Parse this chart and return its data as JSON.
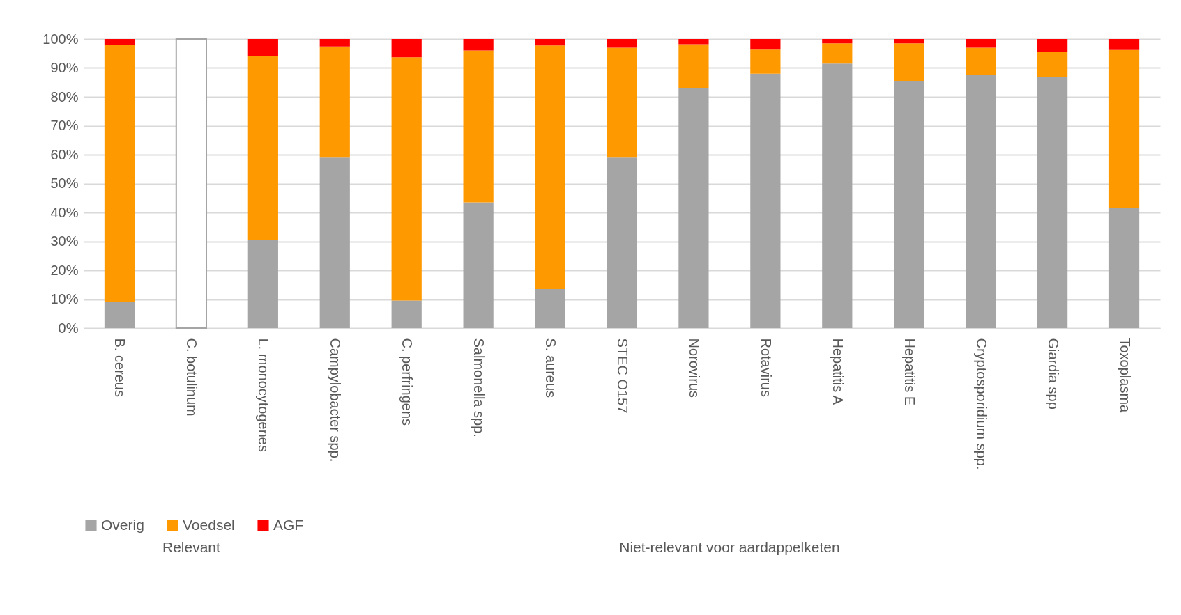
{
  "chart_data": {
    "type": "bar",
    "stacked": true,
    "categories": [
      "B. cereus",
      "C. botulinum",
      "L. monocytogenes",
      "Campylobacter spp.",
      "C. perfringens",
      "Salmonella spp.",
      "S. aureus",
      "STEC O157",
      "Norovirus",
      "Rotavirus",
      "Hepatitis A",
      "Hepatitis E",
      "Cryptosporidium spp.",
      "Giardia spp",
      "Toxoplasma"
    ],
    "series": [
      {
        "name": "Overig",
        "color": "#a5a5a5",
        "values": [
          9,
          null,
          30.5,
          59,
          9.5,
          43.5,
          13.5,
          59,
          83,
          88,
          91.5,
          85.5,
          87.7,
          87,
          41.5
        ]
      },
      {
        "name": "Voedsel",
        "color": "#ff9900",
        "values": [
          89,
          null,
          63.7,
          38.4,
          84.2,
          52.5,
          84.3,
          38,
          15.2,
          8.3,
          7,
          13,
          9.3,
          8.5,
          54.7
        ]
      },
      {
        "name": "AGF",
        "color": "#ff0000",
        "values": [
          2,
          null,
          5.8,
          2.6,
          6.3,
          4,
          2.2,
          3,
          1.8,
          3.7,
          1.5,
          1.5,
          3,
          4.5,
          3.8
        ]
      },
      {
        "color": "#ffffff",
        "values": [
          null,
          100,
          null,
          null,
          null,
          null,
          null,
          null,
          null,
          null,
          null,
          null,
          null,
          null,
          null
        ]
      }
    ],
    "ylim": [
      0,
      100
    ],
    "yticks": [
      {
        "value": 0,
        "label": "0%"
      },
      {
        "value": 10,
        "label": "10%"
      },
      {
        "value": 20,
        "label": "20%"
      },
      {
        "value": 30,
        "label": "30%"
      },
      {
        "value": 40,
        "label": "40%"
      },
      {
        "value": 50,
        "label": "50%"
      },
      {
        "value": 60,
        "label": "60%"
      },
      {
        "value": 70,
        "label": "70%"
      },
      {
        "value": 80,
        "label": "80%"
      },
      {
        "value": 90,
        "label": "90%"
      },
      {
        "value": 100,
        "label": "100%"
      }
    ],
    "grid": "y",
    "legend": "bottom",
    "annotations": [
      "Relevant",
      "Niet-relevant voor aardappelketen"
    ]
  }
}
